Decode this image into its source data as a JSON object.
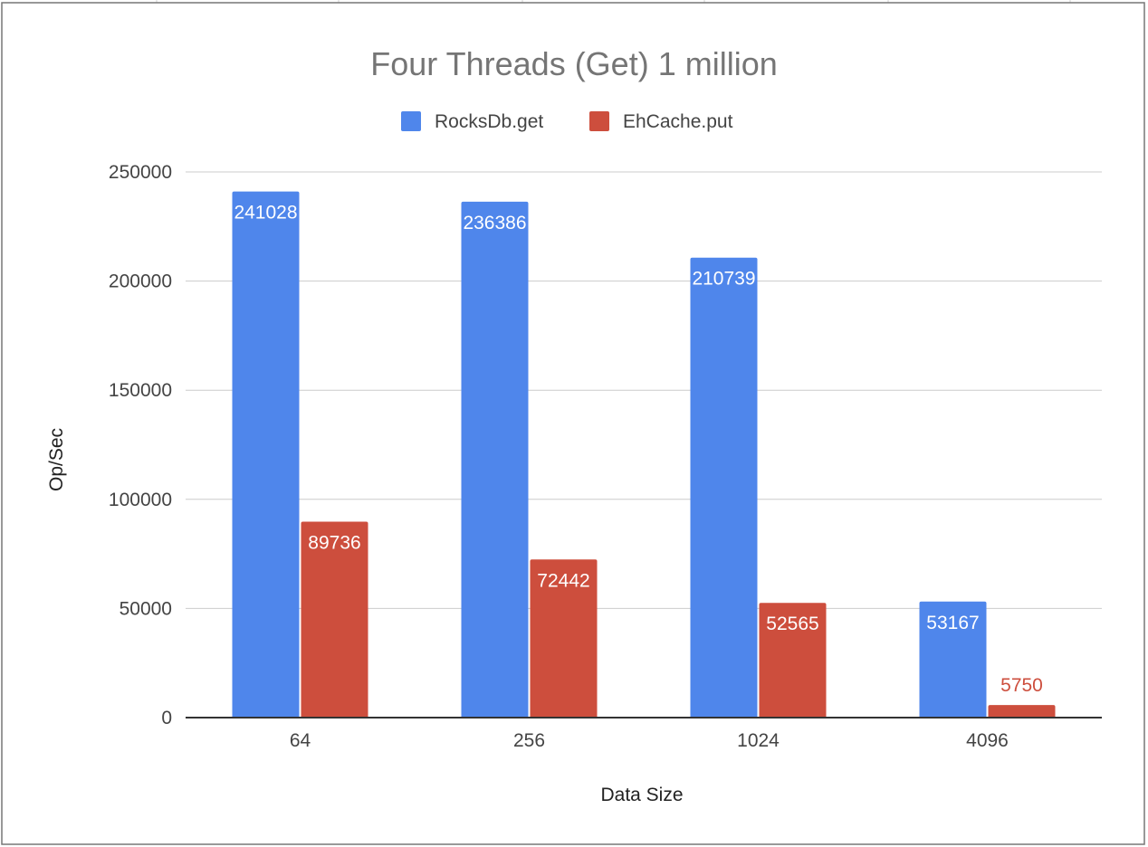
{
  "chart_data": {
    "type": "bar",
    "title": "Four Threads (Get) 1 million",
    "xlabel": "Data Size",
    "ylabel": "Op/Sec",
    "categories": [
      "64",
      "256",
      "1024",
      "4096"
    ],
    "series": [
      {
        "name": "RocksDb.get",
        "color": "#4f86eb",
        "values": [
          241028,
          236386,
          210739,
          53167
        ]
      },
      {
        "name": "EhCache.put",
        "color": "#cd4e3d",
        "values": [
          89736,
          72442,
          52565,
          5750
        ]
      }
    ],
    "ylim": [
      0,
      250000
    ],
    "yticks": [
      "0",
      "50000",
      "100000",
      "150000",
      "200000",
      "250000"
    ],
    "grid": true,
    "legend_position": "top"
  }
}
